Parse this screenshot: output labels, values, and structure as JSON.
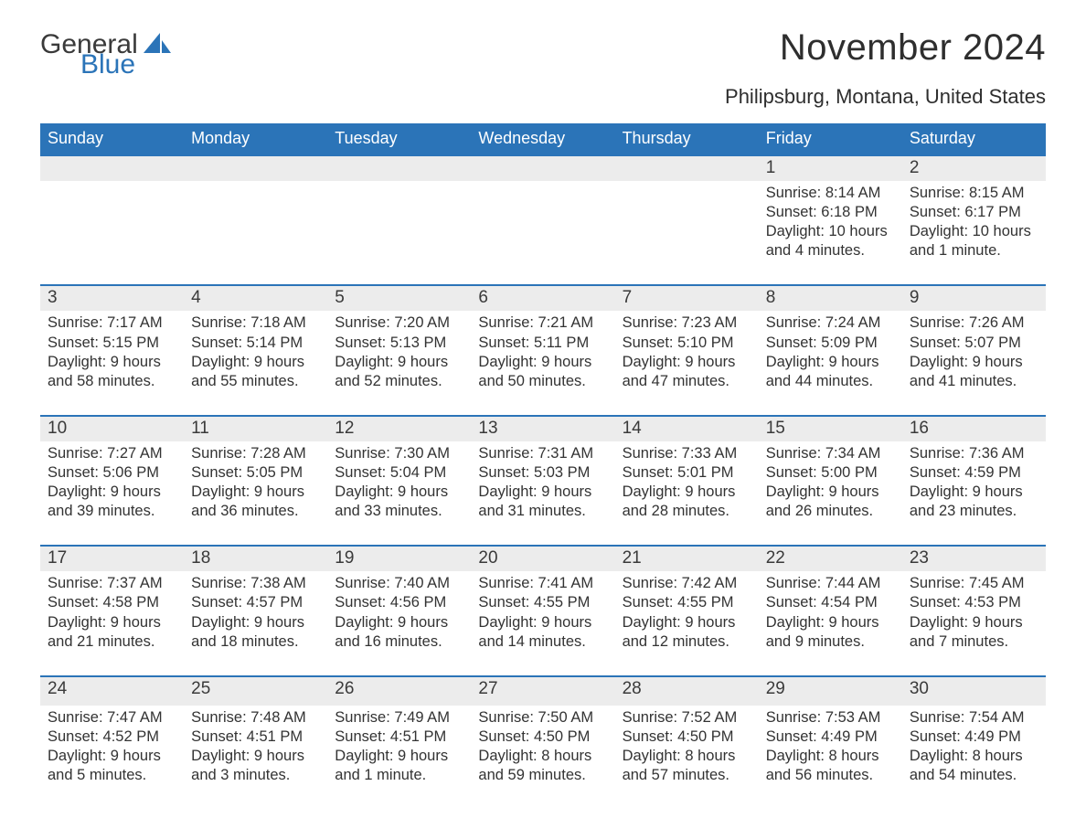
{
  "logo": {
    "word1": "General",
    "word2": "Blue"
  },
  "colors": {
    "accent": "#2b74b8",
    "band": "#ececec",
    "text": "#333333",
    "title": "#2e2e2e",
    "logo_gray": "#3a3a3a"
  },
  "title": "November 2024",
  "location": "Philipsburg, Montana, United States",
  "weekdays": [
    "Sunday",
    "Monday",
    "Tuesday",
    "Wednesday",
    "Thursday",
    "Friday",
    "Saturday"
  ],
  "weeks": [
    [
      null,
      null,
      null,
      null,
      null,
      {
        "n": "1",
        "sunrise": "Sunrise: 8:14 AM",
        "sunset": "Sunset: 6:18 PM",
        "daylight": "Daylight: 10 hours and 4 minutes."
      },
      {
        "n": "2",
        "sunrise": "Sunrise: 8:15 AM",
        "sunset": "Sunset: 6:17 PM",
        "daylight": "Daylight: 10 hours and 1 minute."
      }
    ],
    [
      {
        "n": "3",
        "sunrise": "Sunrise: 7:17 AM",
        "sunset": "Sunset: 5:15 PM",
        "daylight": "Daylight: 9 hours and 58 minutes."
      },
      {
        "n": "4",
        "sunrise": "Sunrise: 7:18 AM",
        "sunset": "Sunset: 5:14 PM",
        "daylight": "Daylight: 9 hours and 55 minutes."
      },
      {
        "n": "5",
        "sunrise": "Sunrise: 7:20 AM",
        "sunset": "Sunset: 5:13 PM",
        "daylight": "Daylight: 9 hours and 52 minutes."
      },
      {
        "n": "6",
        "sunrise": "Sunrise: 7:21 AM",
        "sunset": "Sunset: 5:11 PM",
        "daylight": "Daylight: 9 hours and 50 minutes."
      },
      {
        "n": "7",
        "sunrise": "Sunrise: 7:23 AM",
        "sunset": "Sunset: 5:10 PM",
        "daylight": "Daylight: 9 hours and 47 minutes."
      },
      {
        "n": "8",
        "sunrise": "Sunrise: 7:24 AM",
        "sunset": "Sunset: 5:09 PM",
        "daylight": "Daylight: 9 hours and 44 minutes."
      },
      {
        "n": "9",
        "sunrise": "Sunrise: 7:26 AM",
        "sunset": "Sunset: 5:07 PM",
        "daylight": "Daylight: 9 hours and 41 minutes."
      }
    ],
    [
      {
        "n": "10",
        "sunrise": "Sunrise: 7:27 AM",
        "sunset": "Sunset: 5:06 PM",
        "daylight": "Daylight: 9 hours and 39 minutes."
      },
      {
        "n": "11",
        "sunrise": "Sunrise: 7:28 AM",
        "sunset": "Sunset: 5:05 PM",
        "daylight": "Daylight: 9 hours and 36 minutes."
      },
      {
        "n": "12",
        "sunrise": "Sunrise: 7:30 AM",
        "sunset": "Sunset: 5:04 PM",
        "daylight": "Daylight: 9 hours and 33 minutes."
      },
      {
        "n": "13",
        "sunrise": "Sunrise: 7:31 AM",
        "sunset": "Sunset: 5:03 PM",
        "daylight": "Daylight: 9 hours and 31 minutes."
      },
      {
        "n": "14",
        "sunrise": "Sunrise: 7:33 AM",
        "sunset": "Sunset: 5:01 PM",
        "daylight": "Daylight: 9 hours and 28 minutes."
      },
      {
        "n": "15",
        "sunrise": "Sunrise: 7:34 AM",
        "sunset": "Sunset: 5:00 PM",
        "daylight": "Daylight: 9 hours and 26 minutes."
      },
      {
        "n": "16",
        "sunrise": "Sunrise: 7:36 AM",
        "sunset": "Sunset: 4:59 PM",
        "daylight": "Daylight: 9 hours and 23 minutes."
      }
    ],
    [
      {
        "n": "17",
        "sunrise": "Sunrise: 7:37 AM",
        "sunset": "Sunset: 4:58 PM",
        "daylight": "Daylight: 9 hours and 21 minutes."
      },
      {
        "n": "18",
        "sunrise": "Sunrise: 7:38 AM",
        "sunset": "Sunset: 4:57 PM",
        "daylight": "Daylight: 9 hours and 18 minutes."
      },
      {
        "n": "19",
        "sunrise": "Sunrise: 7:40 AM",
        "sunset": "Sunset: 4:56 PM",
        "daylight": "Daylight: 9 hours and 16 minutes."
      },
      {
        "n": "20",
        "sunrise": "Sunrise: 7:41 AM",
        "sunset": "Sunset: 4:55 PM",
        "daylight": "Daylight: 9 hours and 14 minutes."
      },
      {
        "n": "21",
        "sunrise": "Sunrise: 7:42 AM",
        "sunset": "Sunset: 4:55 PM",
        "daylight": "Daylight: 9 hours and 12 minutes."
      },
      {
        "n": "22",
        "sunrise": "Sunrise: 7:44 AM",
        "sunset": "Sunset: 4:54 PM",
        "daylight": "Daylight: 9 hours and 9 minutes."
      },
      {
        "n": "23",
        "sunrise": "Sunrise: 7:45 AM",
        "sunset": "Sunset: 4:53 PM",
        "daylight": "Daylight: 9 hours and 7 minutes."
      }
    ],
    [
      {
        "n": "24",
        "sunrise": "Sunrise: 7:47 AM",
        "sunset": "Sunset: 4:52 PM",
        "daylight": "Daylight: 9 hours and 5 minutes."
      },
      {
        "n": "25",
        "sunrise": "Sunrise: 7:48 AM",
        "sunset": "Sunset: 4:51 PM",
        "daylight": "Daylight: 9 hours and 3 minutes."
      },
      {
        "n": "26",
        "sunrise": "Sunrise: 7:49 AM",
        "sunset": "Sunset: 4:51 PM",
        "daylight": "Daylight: 9 hours and 1 minute."
      },
      {
        "n": "27",
        "sunrise": "Sunrise: 7:50 AM",
        "sunset": "Sunset: 4:50 PM",
        "daylight": "Daylight: 8 hours and 59 minutes."
      },
      {
        "n": "28",
        "sunrise": "Sunrise: 7:52 AM",
        "sunset": "Sunset: 4:50 PM",
        "daylight": "Daylight: 8 hours and 57 minutes."
      },
      {
        "n": "29",
        "sunrise": "Sunrise: 7:53 AM",
        "sunset": "Sunset: 4:49 PM",
        "daylight": "Daylight: 8 hours and 56 minutes."
      },
      {
        "n": "30",
        "sunrise": "Sunrise: 7:54 AM",
        "sunset": "Sunset: 4:49 PM",
        "daylight": "Daylight: 8 hours and 54 minutes."
      }
    ]
  ]
}
